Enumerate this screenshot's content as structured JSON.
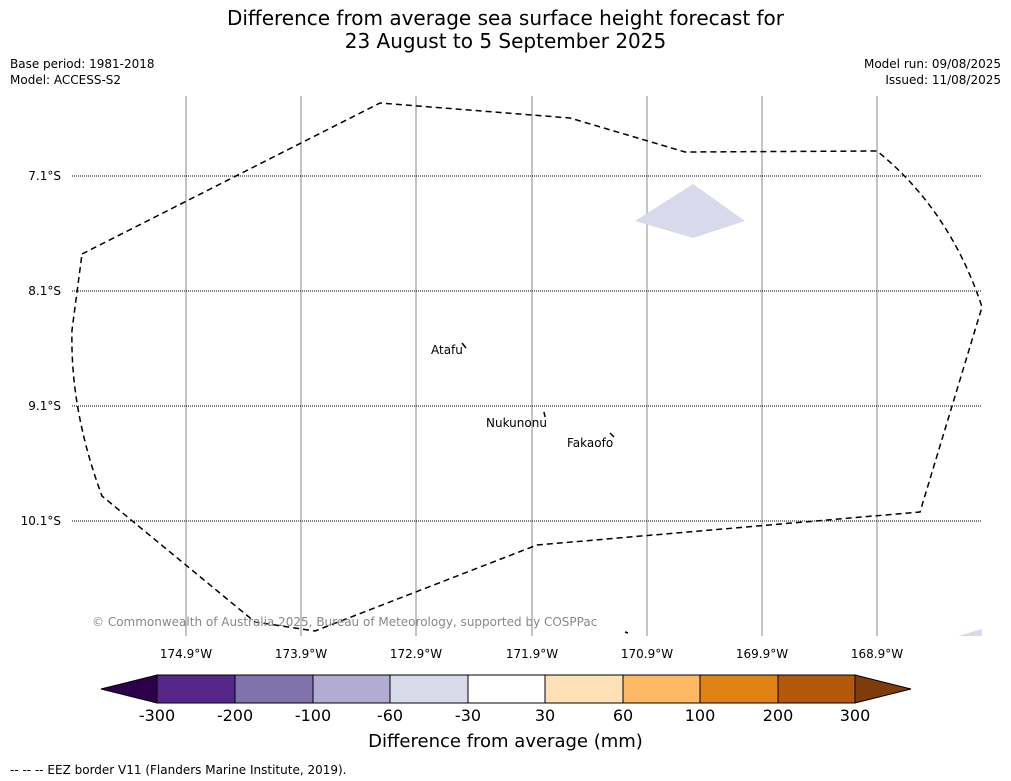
{
  "title_line1": "Difference from average sea surface height forecast for",
  "title_line2": "23 August to 5 September 2025",
  "meta": {
    "base_period": "Base period: 1981-2018",
    "model": "Model: ACCESS-S2",
    "model_run": "Model run: 09/08/2025",
    "issued": "Issued: 11/08/2025"
  },
  "map": {
    "latitude_labels": [
      "7.1°S",
      "8.1°S",
      "9.1°S",
      "10.1°S"
    ],
    "longitude_labels": [
      "174.9°W",
      "173.9°W",
      "172.9°W",
      "171.9°W",
      "170.9°W",
      "169.9°W",
      "168.9°W"
    ],
    "places": [
      "Atafu",
      "Nukunonu",
      "Fakaofo"
    ],
    "copyright": "© Commonwealth of Australia 2025, Bureau of Meteorology, supported by COSPPac",
    "border_style": "dashed",
    "grid": true
  },
  "colorbar": {
    "tick_labels": [
      "-300",
      "-200",
      "-100",
      "-60",
      "-30",
      "30",
      "60",
      "100",
      "200",
      "300"
    ],
    "colors": [
      "#2d004b",
      "#542788",
      "#8073ac",
      "#b2abd2",
      "#d8daeb",
      "#ffffff",
      "#fee0b6",
      "#fdb863",
      "#e08214",
      "#b35806",
      "#7f3b08"
    ],
    "label": "Difference from average (mm)"
  },
  "footnote": "--  --  -- EEZ border V11 (Flanders Marine Institute, 2019)."
}
